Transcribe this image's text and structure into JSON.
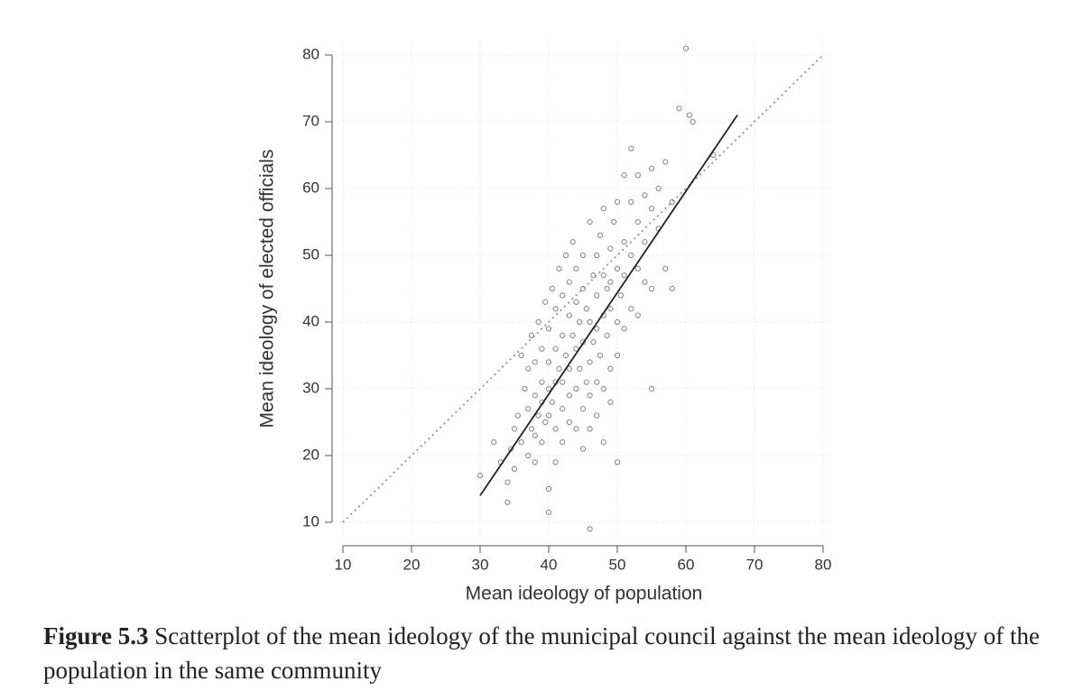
{
  "chart_data": {
    "type": "scatter",
    "xlabel": "Mean ideology of population",
    "ylabel": "Mean ideology of elected officials",
    "xlim": [
      10,
      80
    ],
    "ylim": [
      10,
      80
    ],
    "xticks": [
      10,
      20,
      30,
      40,
      50,
      60,
      70,
      80
    ],
    "yticks": [
      10,
      20,
      30,
      40,
      50,
      60,
      70,
      80
    ],
    "grid": true,
    "x": [
      30,
      32,
      33,
      34,
      34.5,
      35,
      35,
      35.5,
      36,
      36,
      36.5,
      37,
      37,
      37,
      37.5,
      37.5,
      38,
      38,
      38,
      38,
      38.5,
      38.5,
      39,
      39,
      39,
      39,
      39.5,
      39.5,
      40,
      40,
      40,
      40,
      40,
      40.5,
      40.5,
      41,
      41,
      41,
      41,
      41,
      41.5,
      41.5,
      42,
      42,
      42,
      42,
      42,
      42.5,
      42.5,
      43,
      43,
      43,
      43,
      43,
      43.5,
      43.5,
      44,
      44,
      44,
      44,
      44,
      44.5,
      44.5,
      45,
      45,
      45,
      45,
      45,
      45.5,
      45.5,
      46,
      46,
      46,
      46,
      46,
      46.5,
      46.5,
      47,
      47,
      47,
      47,
      47,
      47.5,
      47.5,
      48,
      48,
      48,
      48,
      48,
      48.5,
      48.5,
      49,
      49,
      49,
      49,
      49,
      49.5,
      50,
      50,
      50,
      50,
      50,
      50.5,
      51,
      51,
      51,
      51,
      52,
      52,
      52,
      52,
      53,
      53,
      53,
      53,
      54,
      54,
      54,
      55,
      55,
      55,
      56,
      56,
      57,
      57,
      58,
      58,
      59,
      60,
      60.5,
      61,
      64,
      46,
      40,
      34,
      55
    ],
    "series": [
      {
        "color": "#8a8a8a",
        "values": [
          17,
          22,
          19,
          13,
          21,
          24,
          18,
          26,
          35,
          22,
          30,
          27,
          20,
          33,
          24,
          38,
          23,
          29,
          34,
          19,
          26,
          40,
          28,
          36,
          22,
          31,
          25,
          43,
          30,
          39,
          26,
          34,
          15,
          45,
          28,
          36,
          24,
          42,
          31,
          19,
          48,
          33,
          27,
          38,
          44,
          22,
          31,
          50,
          35,
          29,
          41,
          25,
          46,
          33,
          38,
          52,
          30,
          43,
          24,
          36,
          48,
          33,
          40,
          27,
          45,
          37,
          50,
          21,
          31,
          42,
          34,
          55,
          29,
          40,
          24,
          47,
          37,
          31,
          44,
          50,
          26,
          39,
          53,
          35,
          41,
          30,
          47,
          22,
          57,
          38,
          45,
          33,
          51,
          42,
          28,
          46,
          55,
          40,
          48,
          35,
          58,
          19,
          44,
          52,
          39,
          62,
          47,
          50,
          42,
          58,
          66,
          48,
          55,
          41,
          62,
          52,
          46,
          59,
          57,
          45,
          63,
          60,
          54,
          64,
          48,
          58,
          45,
          72,
          81,
          71,
          70,
          65,
          9,
          11.5,
          16,
          30
        ]
      }
    ],
    "fit_line": {
      "x": [
        30,
        67.5
      ],
      "y": [
        14,
        71
      ],
      "color": "#222222"
    },
    "reference_line": {
      "x": [
        10,
        80
      ],
      "y": [
        10,
        80
      ],
      "color": "#999999"
    },
    "caption": {
      "label": "Figure 5.3",
      "text": "Scatterplot of the mean ideology of the municipal council against the mean ideology of the population in the same community"
    }
  }
}
